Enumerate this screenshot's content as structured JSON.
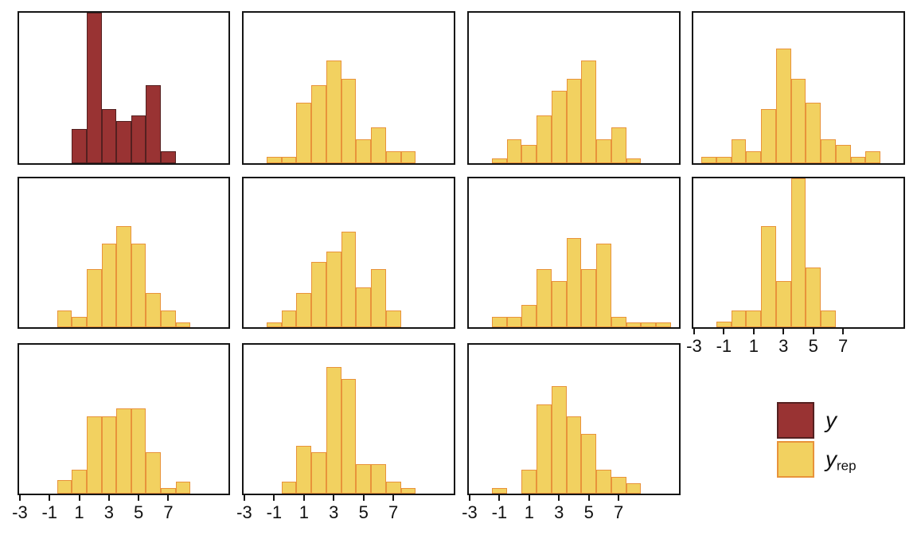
{
  "legend": {
    "y_label": "y",
    "yrep_main": "y",
    "yrep_sub": "rep"
  },
  "colors": {
    "y_fill": "#993333",
    "y_stroke": "#542020",
    "yrep_fill": "#F2D160",
    "yrep_stroke": "#E8933B",
    "panel_border": "#151515"
  },
  "chart_data": {
    "type": "bar",
    "subtype": "histogram-facet-grid-posterior-predictive-check",
    "title": "",
    "xlabel": "",
    "ylabel": "",
    "x_ticks": [
      -3,
      -1,
      1,
      3,
      5,
      7
    ],
    "x_range": [
      -3.05,
      11.05
    ],
    "binwidth": 1,
    "y_axis_shown": false,
    "height_unit": "fraction of shared hidden y-axis maximum",
    "legend_entries": [
      "y",
      "y_rep"
    ],
    "legend_position": "bottom-right",
    "grid": "off",
    "panels": [
      {
        "series": "y",
        "row": 0,
        "col": 0,
        "x_axis": false,
        "bars": [
          [
            1,
            0.23
          ],
          [
            2,
            1.0
          ],
          [
            3,
            0.36
          ],
          [
            4,
            0.28
          ],
          [
            5,
            0.32
          ],
          [
            6,
            0.52
          ],
          [
            7,
            0.08
          ]
        ]
      },
      {
        "series": "y_rep",
        "row": 0,
        "col": 1,
        "x_axis": false,
        "bars": [
          [
            -1,
            0.04
          ],
          [
            0,
            0.04
          ],
          [
            1,
            0.4
          ],
          [
            2,
            0.52
          ],
          [
            3,
            0.68
          ],
          [
            4,
            0.56
          ],
          [
            5,
            0.16
          ],
          [
            6,
            0.24
          ],
          [
            7,
            0.08
          ],
          [
            8,
            0.08
          ]
        ]
      },
      {
        "series": "y_rep",
        "row": 0,
        "col": 2,
        "x_axis": false,
        "bars": [
          [
            -1,
            0.03
          ],
          [
            0,
            0.16
          ],
          [
            1,
            0.12
          ],
          [
            2,
            0.32
          ],
          [
            3,
            0.48
          ],
          [
            4,
            0.56
          ],
          [
            5,
            0.68
          ],
          [
            6,
            0.16
          ],
          [
            7,
            0.24
          ],
          [
            8,
            0.03
          ]
        ]
      },
      {
        "series": "y_rep",
        "row": 0,
        "col": 3,
        "x_axis": false,
        "bars": [
          [
            -2,
            0.04
          ],
          [
            -1,
            0.04
          ],
          [
            0,
            0.16
          ],
          [
            1,
            0.08
          ],
          [
            2,
            0.36
          ],
          [
            3,
            0.76
          ],
          [
            4,
            0.56
          ],
          [
            5,
            0.4
          ],
          [
            6,
            0.16
          ],
          [
            7,
            0.12
          ],
          [
            8,
            0.04
          ],
          [
            9,
            0.08
          ]
        ]
      },
      {
        "series": "y_rep",
        "row": 1,
        "col": 0,
        "x_axis": false,
        "bars": [
          [
            0,
            0.11
          ],
          [
            1,
            0.07
          ],
          [
            2,
            0.39
          ],
          [
            3,
            0.56
          ],
          [
            4,
            0.68
          ],
          [
            5,
            0.56
          ],
          [
            6,
            0.23
          ],
          [
            7,
            0.11
          ],
          [
            8,
            0.03
          ]
        ]
      },
      {
        "series": "y_rep",
        "row": 1,
        "col": 1,
        "x_axis": false,
        "bars": [
          [
            -1,
            0.03
          ],
          [
            0,
            0.11
          ],
          [
            1,
            0.23
          ],
          [
            2,
            0.44
          ],
          [
            3,
            0.51
          ],
          [
            4,
            0.64
          ],
          [
            5,
            0.27
          ],
          [
            6,
            0.39
          ],
          [
            7,
            0.11
          ]
        ]
      },
      {
        "series": "y_rep",
        "row": 1,
        "col": 2,
        "x_axis": false,
        "bars": [
          [
            -1,
            0.07
          ],
          [
            0,
            0.07
          ],
          [
            1,
            0.15
          ],
          [
            2,
            0.39
          ],
          [
            3,
            0.31
          ],
          [
            4,
            0.6
          ],
          [
            5,
            0.39
          ],
          [
            6,
            0.56
          ],
          [
            7,
            0.07
          ],
          [
            8,
            0.03
          ],
          [
            9,
            0.03
          ],
          [
            10,
            0.03
          ]
        ]
      },
      {
        "series": "y_rep",
        "row": 1,
        "col": 3,
        "x_axis": true,
        "bars": [
          [
            -1,
            0.04
          ],
          [
            0,
            0.11
          ],
          [
            1,
            0.11
          ],
          [
            2,
            0.68
          ],
          [
            3,
            0.31
          ],
          [
            4,
            1.0
          ],
          [
            5,
            0.4
          ],
          [
            6,
            0.11
          ]
        ]
      },
      {
        "series": "y_rep",
        "row": 2,
        "col": 0,
        "x_axis": true,
        "bars": [
          [
            0,
            0.09
          ],
          [
            1,
            0.16
          ],
          [
            2,
            0.52
          ],
          [
            3,
            0.52
          ],
          [
            4,
            0.57
          ],
          [
            5,
            0.57
          ],
          [
            6,
            0.28
          ],
          [
            7,
            0.04
          ],
          [
            8,
            0.08
          ]
        ]
      },
      {
        "series": "y_rep",
        "row": 2,
        "col": 1,
        "x_axis": true,
        "bars": [
          [
            0,
            0.08
          ],
          [
            1,
            0.32
          ],
          [
            2,
            0.28
          ],
          [
            3,
            0.85
          ],
          [
            4,
            0.77
          ],
          [
            5,
            0.2
          ],
          [
            6,
            0.2
          ],
          [
            7,
            0.08
          ],
          [
            8,
            0.04
          ]
        ]
      },
      {
        "series": "y_rep",
        "row": 2,
        "col": 2,
        "x_axis": true,
        "bars": [
          [
            -1,
            0.04
          ],
          [
            1,
            0.16
          ],
          [
            2,
            0.6
          ],
          [
            3,
            0.72
          ],
          [
            4,
            0.52
          ],
          [
            5,
            0.4
          ],
          [
            6,
            0.16
          ],
          [
            7,
            0.11
          ],
          [
            8,
            0.07
          ]
        ]
      }
    ]
  }
}
